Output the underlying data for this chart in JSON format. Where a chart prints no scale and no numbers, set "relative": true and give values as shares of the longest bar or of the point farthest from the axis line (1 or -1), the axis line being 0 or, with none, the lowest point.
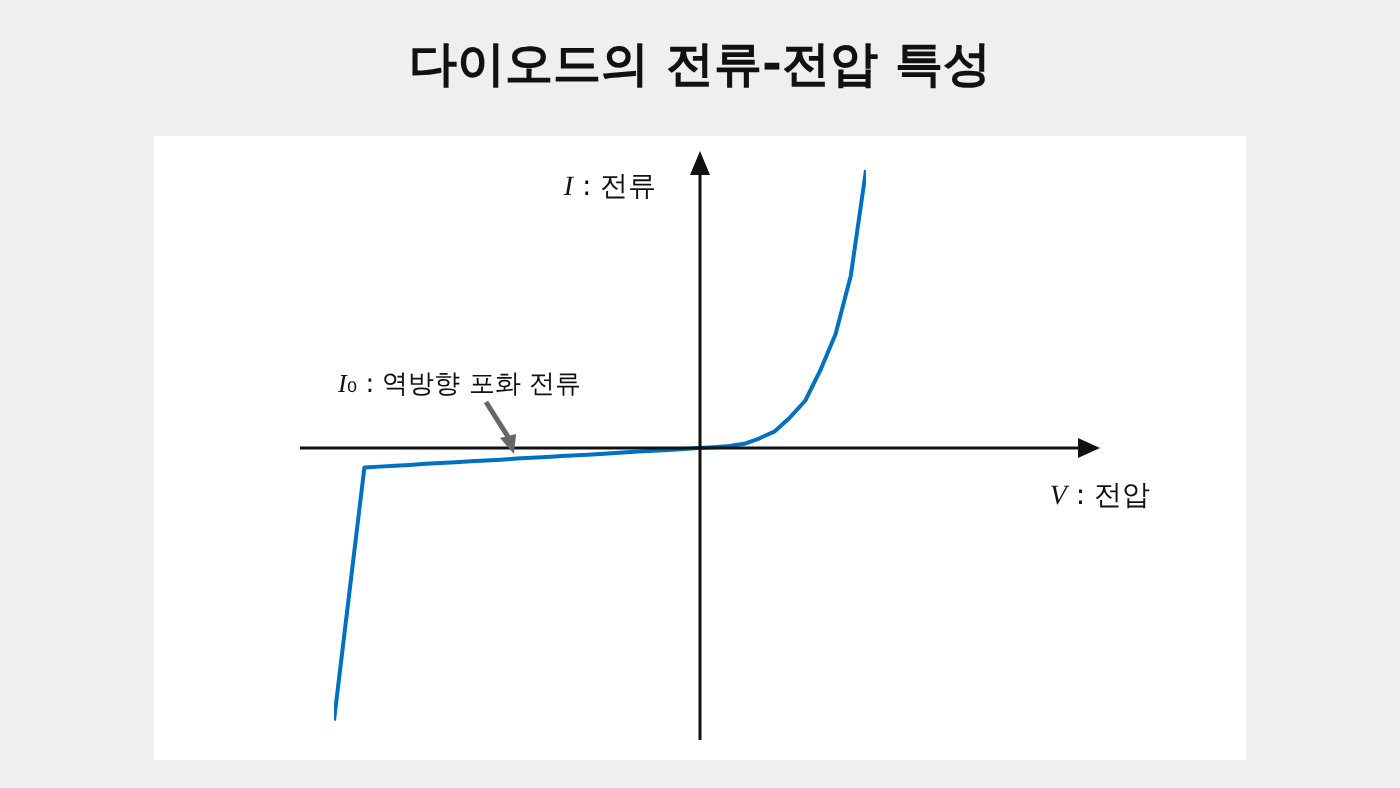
{
  "chart_data": {
    "type": "line",
    "title": "다이오드의 전류-전압 특성",
    "ylabel": "I : 전류",
    "relative": true,
    "categories": [
      null,
      null,
      null,
      null,
      null,
      null,
      null,
      null,
      null,
      null,
      null,
      null,
      null,
      null,
      null,
      null,
      null,
      null,
      null,
      null,
      null,
      null,
      null,
      null,
      null,
      null,
      null,
      null,
      null,
      null,
      null,
      null,
      null,
      null,
      null,
      null
    ],
    "series": [
      {
        "color": "#0070c0",
        "values": [
          -0.98,
          -0.525,
          -0.07,
          -0.067,
          -0.064,
          -0.061,
          -0.057,
          -0.054,
          -0.051,
          -0.048,
          -0.045,
          -0.042,
          -0.038,
          -0.035,
          -0.032,
          -0.029,
          -0.026,
          -0.023,
          -0.02,
          -0.016,
          -0.013,
          -0.01,
          -0.007,
          -0.004,
          0,
          0.003,
          0.007,
          0.015,
          0.035,
          0.06,
          0.11,
          0.17,
          0.28,
          0.41,
          0.62,
          1
        ]
      }
    ],
    "annotations": [
      "V : 전압",
      "I₀ : 역방향 포화 전류"
    ],
    "marker": "none",
    "line_style": "solid"
  }
}
